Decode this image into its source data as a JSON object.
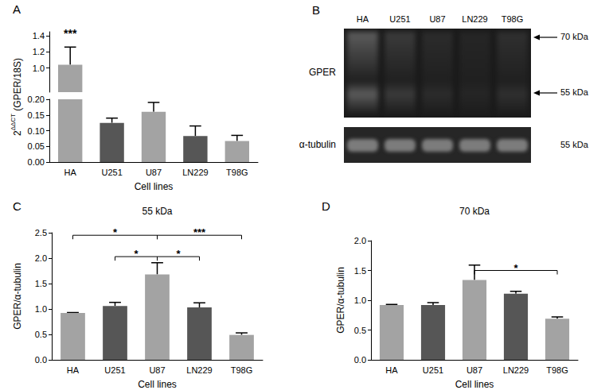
{
  "chart_data": [
    {
      "panel": "A",
      "type": "bar",
      "categories": [
        "HA",
        "U251",
        "U87",
        "LN229",
        "T98G"
      ],
      "values": [
        1.04,
        0.125,
        0.16,
        0.083,
        0.067
      ],
      "errors": [
        0.22,
        0.015,
        0.03,
        0.032,
        0.018
      ],
      "colors": [
        "#a3a3a3",
        "#565656",
        "#a3a3a3",
        "#565656",
        "#a3a3a3"
      ],
      "xlabel": "Cell lines",
      "ylabel": "2ΔΔCT (GPER/18S)",
      "ylabel_superscript": "ΔΔCT",
      "ylim": [
        0,
        1.45
      ],
      "axis_break": [
        0.2,
        0.7
      ],
      "yticks": [
        {
          "value": 0,
          "label": "0.00"
        },
        0.05,
        {
          "value": 0.1,
          "label": "0.10"
        },
        0.15,
        {
          "value": 0.2,
          "label": "0.20"
        },
        {
          "value": 1,
          "label": "1.0"
        },
        1.2,
        1.4
      ],
      "annotations": [
        {
          "category": "HA",
          "label": "***"
        }
      ]
    },
    {
      "panel": "C",
      "type": "bar",
      "title": "55 kDa",
      "categories": [
        "HA",
        "U251",
        "U87",
        "LN229",
        "T98G"
      ],
      "values": [
        0.92,
        1.06,
        1.68,
        1.03,
        0.49
      ],
      "errors": [
        0.01,
        0.07,
        0.23,
        0.09,
        0.04
      ],
      "colors": [
        "#a3a3a3",
        "#565656",
        "#a3a3a3",
        "#565656",
        "#a3a3a3"
      ],
      "xlabel": "Cell lines",
      "ylabel": "GPER/α-tubulin",
      "ylim": [
        0,
        2.5
      ],
      "yticks": [
        {
          "value": 0,
          "label": "0.0"
        },
        0.5,
        {
          "value": 1,
          "label": "1.0"
        },
        1.5,
        {
          "value": 2,
          "label": "2.0"
        },
        2.5
      ],
      "comparisons": [
        {
          "from": "HA",
          "to": "U87",
          "y": 2.45,
          "label": "*"
        },
        {
          "from": "U251",
          "to": "U87",
          "y": 2.03,
          "label": "*"
        },
        {
          "from": "U87",
          "to": "LN229",
          "y": 2.03,
          "label": "*"
        },
        {
          "from": "U87",
          "to": "T98G",
          "y": 2.45,
          "label": "***"
        }
      ]
    },
    {
      "panel": "D",
      "type": "bar",
      "title": "70 kDa",
      "categories": [
        "HA",
        "U251",
        "U87",
        "LN229",
        "T98G"
      ],
      "values": [
        0.92,
        0.92,
        1.34,
        1.11,
        0.69
      ],
      "errors": [
        0.01,
        0.04,
        0.25,
        0.04,
        0.03
      ],
      "colors": [
        "#a3a3a3",
        "#565656",
        "#a3a3a3",
        "#565656",
        "#a3a3a3"
      ],
      "xlabel": "Cell lines",
      "ylabel": "GPER/α-tubulin",
      "ylim": [
        0,
        2
      ],
      "yticks": [
        {
          "value": 0,
          "label": "0.0"
        },
        0.5,
        {
          "value": 1,
          "label": "1.0"
        },
        1.5,
        {
          "value": 2,
          "label": "2.0"
        }
      ],
      "comparisons": [
        {
          "from": "U87",
          "to": "T98G",
          "y": 1.5,
          "label": "*"
        }
      ]
    }
  ],
  "blot": {
    "panel": "B",
    "lanes": [
      "HA",
      "U251",
      "U87",
      "LN229",
      "T98G"
    ],
    "rows": [
      {
        "label": "GPER",
        "markers": [
          "70 kDa",
          "55 kDa"
        ]
      },
      {
        "label": "α-tubulin",
        "markers": [
          "55 kDa"
        ]
      }
    ]
  }
}
